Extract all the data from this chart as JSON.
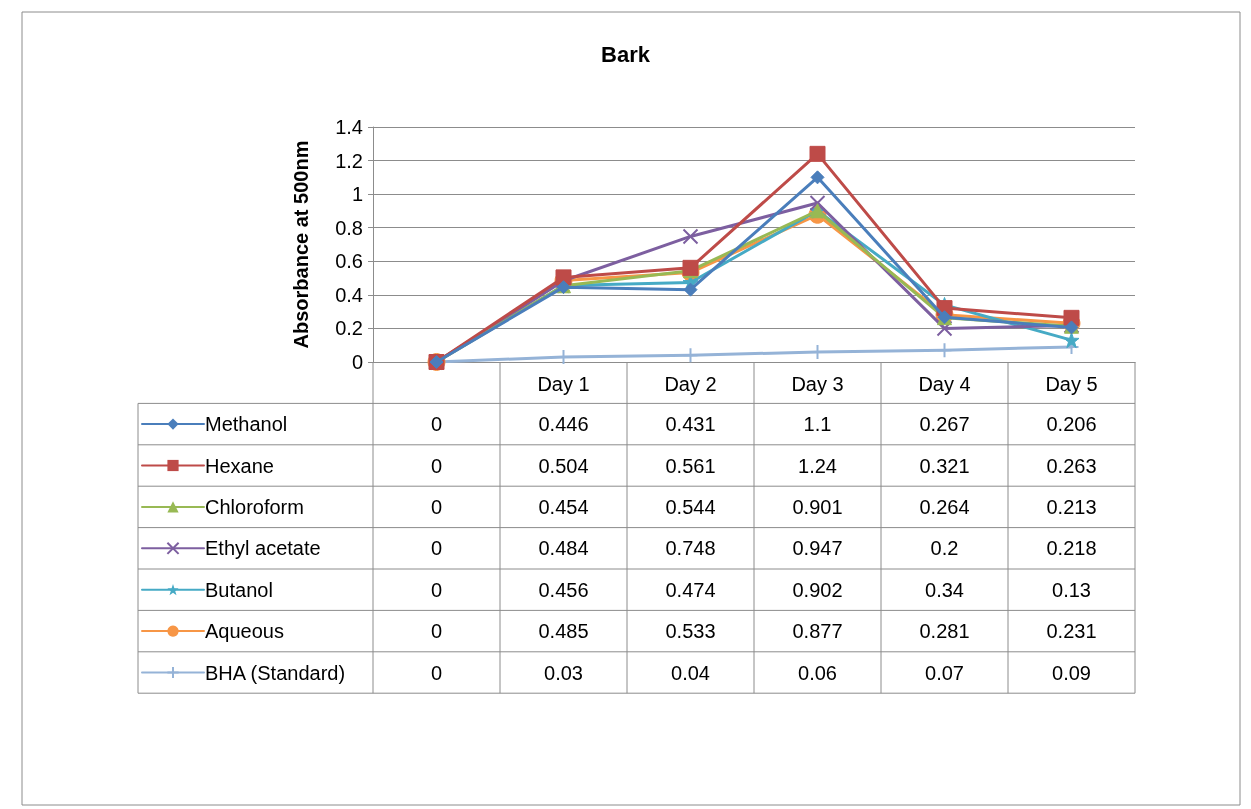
{
  "chart_data": {
    "type": "line",
    "title": "Bark",
    "ylabel": "Absorbance at 500nm",
    "categories": [
      null,
      "Day 1",
      "Day 2",
      "Day 3",
      "Day 4",
      "Day 5"
    ],
    "series": [
      {
        "name": "Methanol",
        "color": "#4a7ebb",
        "marker": "diamond",
        "values": [
          0,
          0.446,
          0.431,
          1.1,
          0.267,
          0.206
        ]
      },
      {
        "name": "Hexane",
        "color": "#be4b48",
        "marker": "square",
        "values": [
          0,
          0.504,
          0.561,
          1.24,
          0.321,
          0.263
        ]
      },
      {
        "name": "Chloroform",
        "color": "#98b954",
        "marker": "triangle",
        "values": [
          0,
          0.454,
          0.544,
          0.901,
          0.264,
          0.213
        ]
      },
      {
        "name": "Ethyl acetate",
        "color": "#7d5fa0",
        "marker": "cross",
        "values": [
          0,
          0.484,
          0.748,
          0.947,
          0.2,
          0.218
        ]
      },
      {
        "name": "Butanol",
        "color": "#46aac5",
        "marker": "star",
        "values": [
          0,
          0.456,
          0.474,
          0.902,
          0.34,
          0.13
        ]
      },
      {
        "name": "Aqueous",
        "color": "#f79646",
        "marker": "circle",
        "values": [
          0,
          0.485,
          0.533,
          0.877,
          0.281,
          0.231
        ]
      },
      {
        "name": "BHA (Standard)",
        "color": "#95b3d7",
        "marker": "plus",
        "values": [
          0,
          0.03,
          0.04,
          0.06,
          0.07,
          0.09
        ]
      }
    ],
    "ylim": [
      0,
      1.4
    ],
    "yticks": [
      0,
      0.2,
      0.4,
      0.6,
      0.8,
      1,
      1.2,
      1.4
    ],
    "grid": "y",
    "legend": "bottom",
    "data_labels": true,
    "line_style": "solid"
  }
}
